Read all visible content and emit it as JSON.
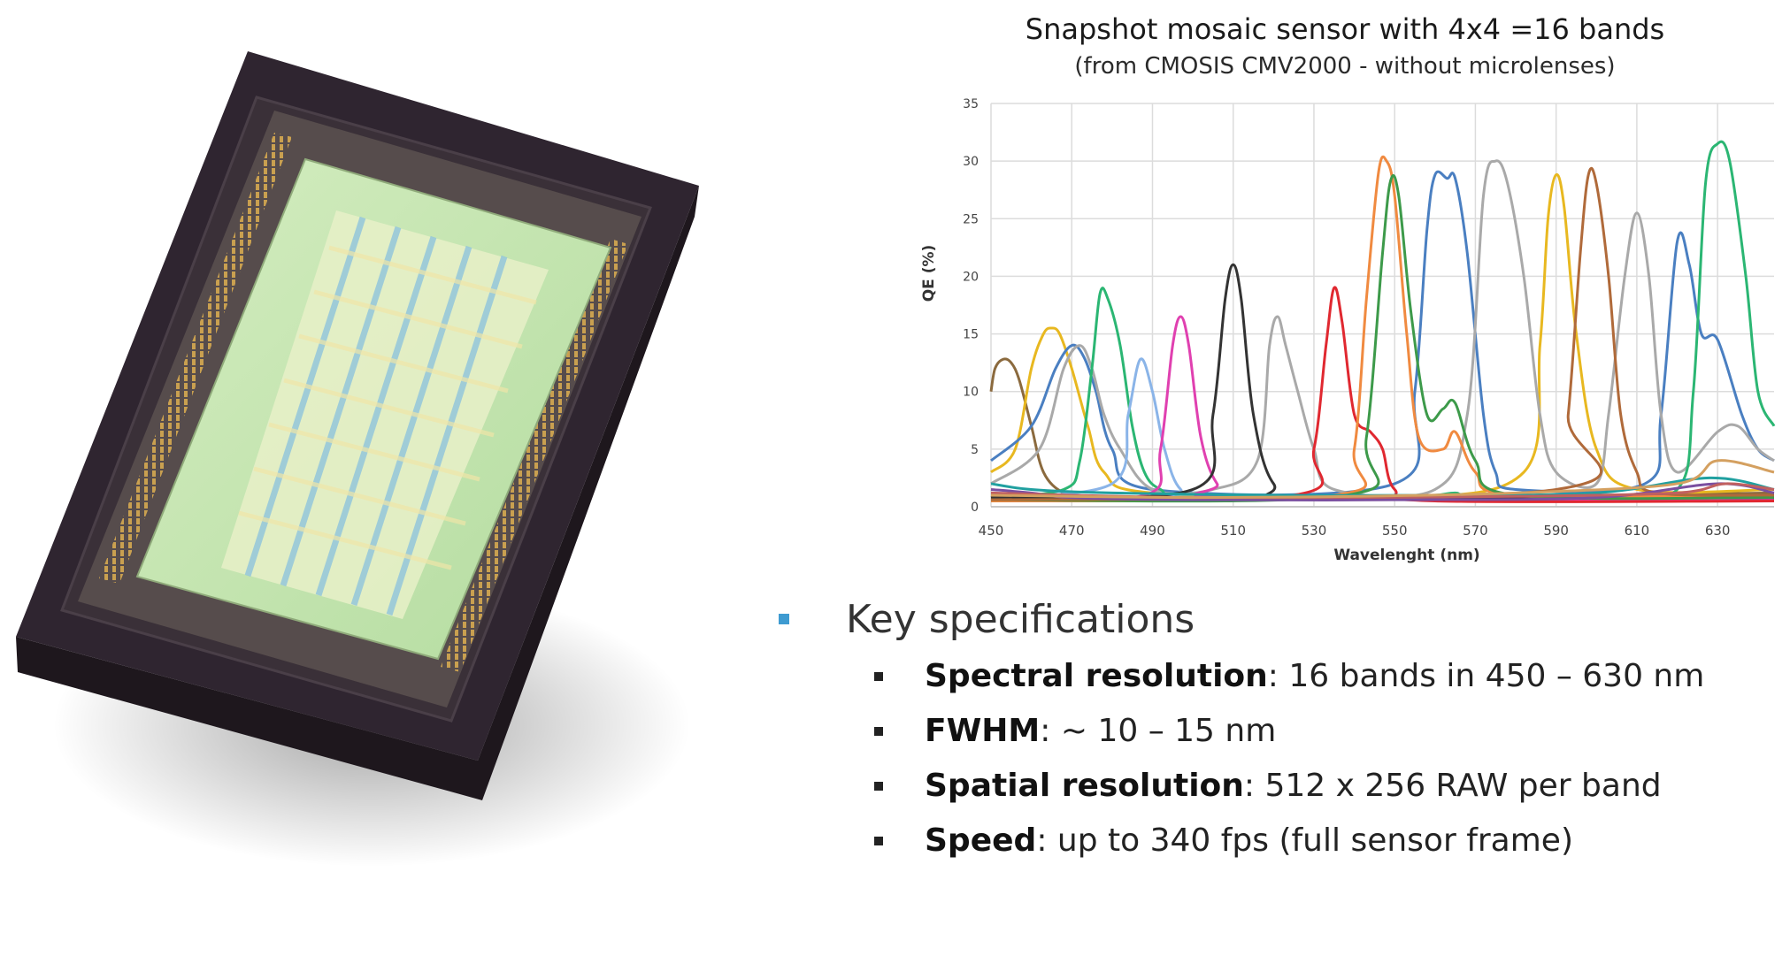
{
  "chart_data": {
    "type": "line",
    "title": "Snapshot mosaic sensor with 4x4 =16 bands",
    "subtitle": "(from CMOSIS CMV2000 - without microlenses)",
    "xlabel": "Wavelenght (nm)",
    "ylabel": "QE (%)",
    "xlim": [
      450,
      644
    ],
    "ylim": [
      0,
      35
    ],
    "x_ticks": [
      450,
      470,
      490,
      510,
      530,
      550,
      570,
      590,
      610,
      630
    ],
    "y_ticks": [
      0,
      5,
      10,
      15,
      20,
      25,
      30,
      35
    ],
    "y_tick_labels": [
      "0",
      "5",
      "10",
      "15",
      "20",
      "25",
      "30",
      "35"
    ],
    "grid": true,
    "legend": "none",
    "series": [
      {
        "color": "#8b6a3e",
        "x": [
          450,
          451,
          453,
          455,
          457,
          460,
          463,
          468,
          475,
          500,
          550,
          600,
          644
        ],
        "values": [
          10,
          12,
          12.8,
          12.5,
          11,
          7,
          3,
          1.2,
          0.8,
          0.8,
          0.9,
          1.0,
          1.2
        ]
      },
      {
        "color": "#e8b820",
        "x": [
          450,
          456,
          460,
          463,
          465,
          467,
          470,
          474,
          478,
          490,
          550,
          582,
          586,
          588,
          590,
          592,
          595,
          600,
          610,
          644
        ],
        "values": [
          3,
          5,
          12,
          15,
          15.5,
          15,
          12,
          7,
          3,
          1.2,
          0.8,
          3,
          14,
          25,
          28.8,
          26,
          15,
          5,
          1.5,
          1.5
        ]
      },
      {
        "color": "#4a7fc1",
        "x": [
          450,
          460,
          466,
          470,
          473,
          476,
          480,
          490,
          550,
          555,
          558,
          560,
          563,
          565,
          568,
          572,
          575,
          580,
          612,
          616,
          620,
          623,
          626,
          630,
          636,
          640,
          644
        ],
        "values": [
          4,
          7,
          12,
          14,
          13,
          10,
          5,
          1.5,
          2,
          10,
          24,
          28.8,
          28.5,
          28.5,
          22,
          8,
          3,
          1.5,
          2,
          8,
          23,
          21,
          15,
          14.5,
          8,
          5,
          4
        ]
      },
      {
        "color": "#a9a9a9",
        "x": [
          450,
          462,
          468,
          472,
          475,
          478,
          482,
          490,
          505,
          516,
          519,
          521,
          523,
          526,
          530,
          535,
          560,
          568,
          572,
          575,
          578,
          582,
          586,
          590,
          600,
          603,
          607,
          610,
          613,
          616,
          620,
          630,
          635,
          640,
          644
        ],
        "values": [
          2,
          5,
          12,
          14,
          12,
          8,
          5,
          1.5,
          1.5,
          4,
          14,
          16.5,
          14,
          10,
          5,
          1.5,
          1.5,
          8,
          27,
          30,
          28,
          20,
          8,
          3,
          2,
          8,
          20,
          25.5,
          20,
          8,
          3,
          6.5,
          7,
          5,
          4
        ]
      },
      {
        "color": "#2bb673",
        "x": [
          450,
          468,
          472,
          475,
          477,
          479,
          482,
          485,
          488,
          492,
          500,
          550,
          560,
          565,
          570,
          600,
          620,
          624,
          627,
          630,
          633,
          637,
          640,
          644
        ],
        "values": [
          0.8,
          1.5,
          4,
          12,
          18.5,
          18,
          14,
          7,
          3,
          1.5,
          0.8,
          0.8,
          1,
          1.2,
          1,
          1,
          1.5,
          10,
          28,
          31.5,
          30,
          20,
          10,
          7
        ]
      },
      {
        "color": "#8ab4e8",
        "x": [
          450,
          480,
          484,
          487,
          490,
          493,
          497,
          505,
          644
        ],
        "values": [
          0.8,
          2,
          8,
          12.8,
          10,
          5,
          1.5,
          0.8,
          0.6
        ]
      },
      {
        "color": "#e040b0",
        "x": [
          450,
          488,
          492,
          495,
          497,
          499,
          502,
          506,
          512,
          644
        ],
        "values": [
          0.6,
          1,
          5,
          14,
          16.5,
          14,
          6,
          2,
          0.8,
          0.6
        ]
      },
      {
        "color": "#333333",
        "x": [
          450,
          500,
          505,
          508,
          510,
          512,
          515,
          520,
          530,
          644
        ],
        "values": [
          0.8,
          1.5,
          8,
          18,
          21,
          18,
          8,
          2,
          0.8,
          0.8
        ]
      },
      {
        "color": "#e02830",
        "x": [
          450,
          525,
          530,
          533,
          535,
          537,
          540,
          544,
          547,
          550,
          560,
          644
        ],
        "values": [
          0.5,
          1,
          5,
          14,
          19,
          16,
          8,
          6.5,
          5,
          1.5,
          0.5,
          0.5
        ]
      },
      {
        "color": "#f08a40",
        "x": [
          450,
          535,
          540,
          543,
          546,
          548,
          550,
          553,
          556,
          562,
          565,
          570,
          580,
          644
        ],
        "values": [
          0.5,
          1,
          5,
          18,
          29,
          30,
          27,
          15,
          6,
          5,
          6.5,
          3,
          1,
          1
        ]
      },
      {
        "color": "#3d9a4a",
        "x": [
          450,
          538,
          543,
          547,
          549,
          551,
          554,
          558,
          562,
          565,
          570,
          580,
          644
        ],
        "values": [
          0.6,
          1,
          6,
          22,
          28.3,
          27,
          17,
          8,
          8.5,
          9,
          4,
          1,
          0.8
        ]
      },
      {
        "color": "#b06a3a",
        "x": [
          450,
          590,
          593,
          596,
          598,
          600,
          603,
          606,
          610,
          615,
          644
        ],
        "values": [
          0.6,
          1.5,
          8,
          22,
          28.8,
          28,
          20,
          8,
          3,
          1.2,
          1
        ]
      },
      {
        "color": "#7b4fa0",
        "x": [
          450,
          460,
          470,
          500,
          550,
          600,
          630,
          644
        ],
        "values": [
          1.5,
          1.2,
          0.8,
          0.6,
          0.6,
          0.8,
          2,
          1.2
        ]
      },
      {
        "color": "#20a0a0",
        "x": [
          450,
          460,
          480,
          520,
          560,
          600,
          628,
          644
        ],
        "values": [
          2,
          1.5,
          1.2,
          1,
          1,
          1.2,
          2.5,
          1.5
        ]
      },
      {
        "color": "#c06060",
        "x": [
          450,
          470,
          500,
          540,
          580,
          620,
          632,
          644
        ],
        "values": [
          1.2,
          1,
          0.8,
          0.8,
          0.9,
          1.2,
          2,
          1.5
        ]
      },
      {
        "color": "#d4a060",
        "x": [
          450,
          470,
          500,
          540,
          580,
          620,
          630,
          644
        ],
        "values": [
          1,
          0.9,
          0.8,
          0.9,
          1.2,
          2,
          4,
          3
        ]
      }
    ]
  },
  "specs": {
    "heading": "Key specifications",
    "items": [
      {
        "label": "Spectral resolution",
        "text": ": 16 bands in 450 – 630 nm"
      },
      {
        "label": "FWHM",
        "text": ": ~ 10 – 15 nm"
      },
      {
        "label": "Spatial resolution",
        "text": ":  512 x 256 RAW per band"
      },
      {
        "label": "Speed",
        "text": ": up to 340 fps (full sensor frame)"
      }
    ]
  },
  "colors": {
    "blue_bullet": "#3e9bd1",
    "sensor_green": "#bfe3a6",
    "package_dark": "#2a2028"
  }
}
